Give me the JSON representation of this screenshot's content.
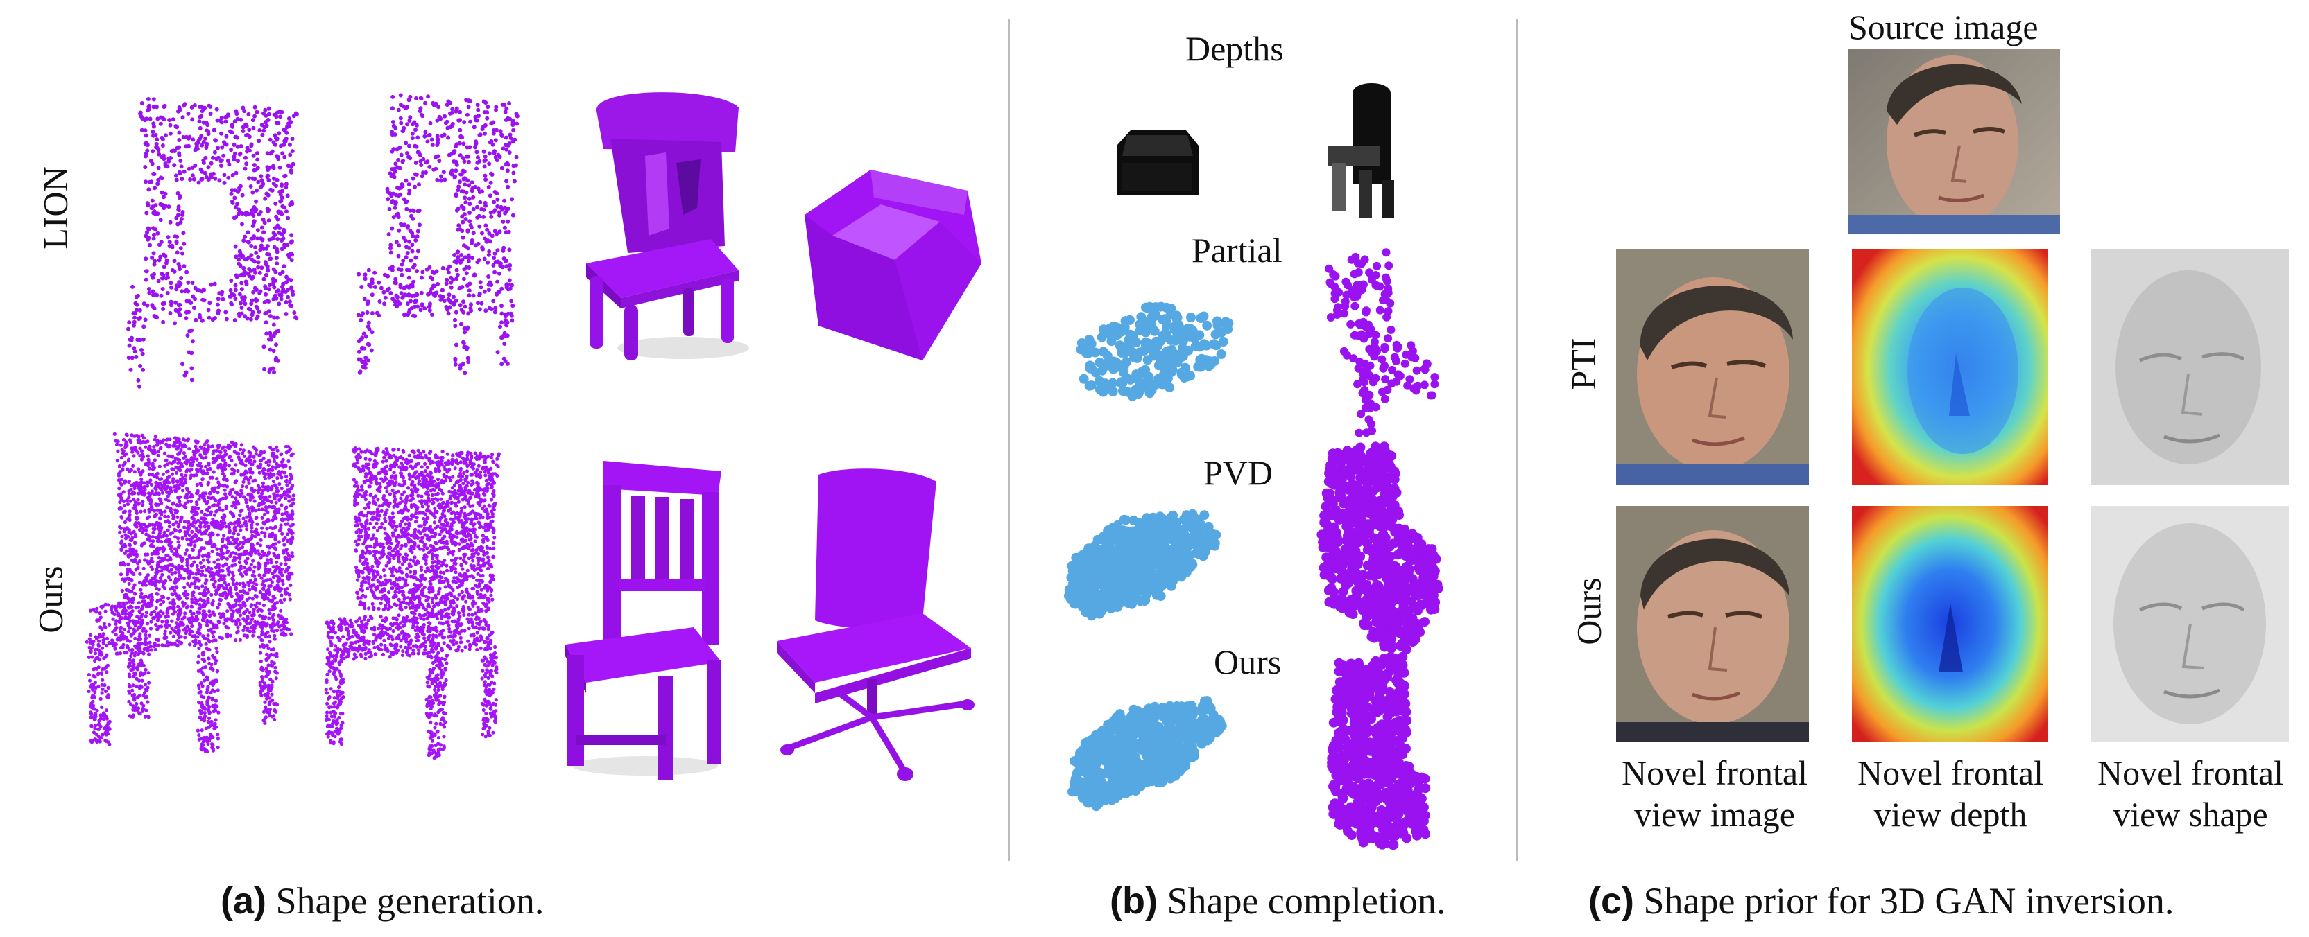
{
  "panel_a": {
    "row_labels": [
      "LION",
      "Ours"
    ],
    "caption_letter": "(a)",
    "caption_text": " Shape generation."
  },
  "panel_b": {
    "row_labels": [
      "Depths",
      "Partial",
      "PVD",
      "Ours"
    ],
    "caption_letter": "(b)",
    "caption_text": " Shape completion."
  },
  "panel_c": {
    "source_label": "Source image",
    "row_labels": [
      "PTI",
      "Ours"
    ],
    "col_labels": [
      [
        "Novel frontal",
        "view image"
      ],
      [
        "Novel frontal",
        "view depth"
      ],
      [
        "Novel frontal",
        "view shape"
      ]
    ],
    "caption_letter": "(c)",
    "caption_text": " Shape prior for 3D GAN inversion."
  },
  "colors": {
    "purple": "#9a12f0",
    "purple_solid": "#a414f7",
    "blue": "#56a8e2",
    "separator": "#bcbcbc"
  }
}
